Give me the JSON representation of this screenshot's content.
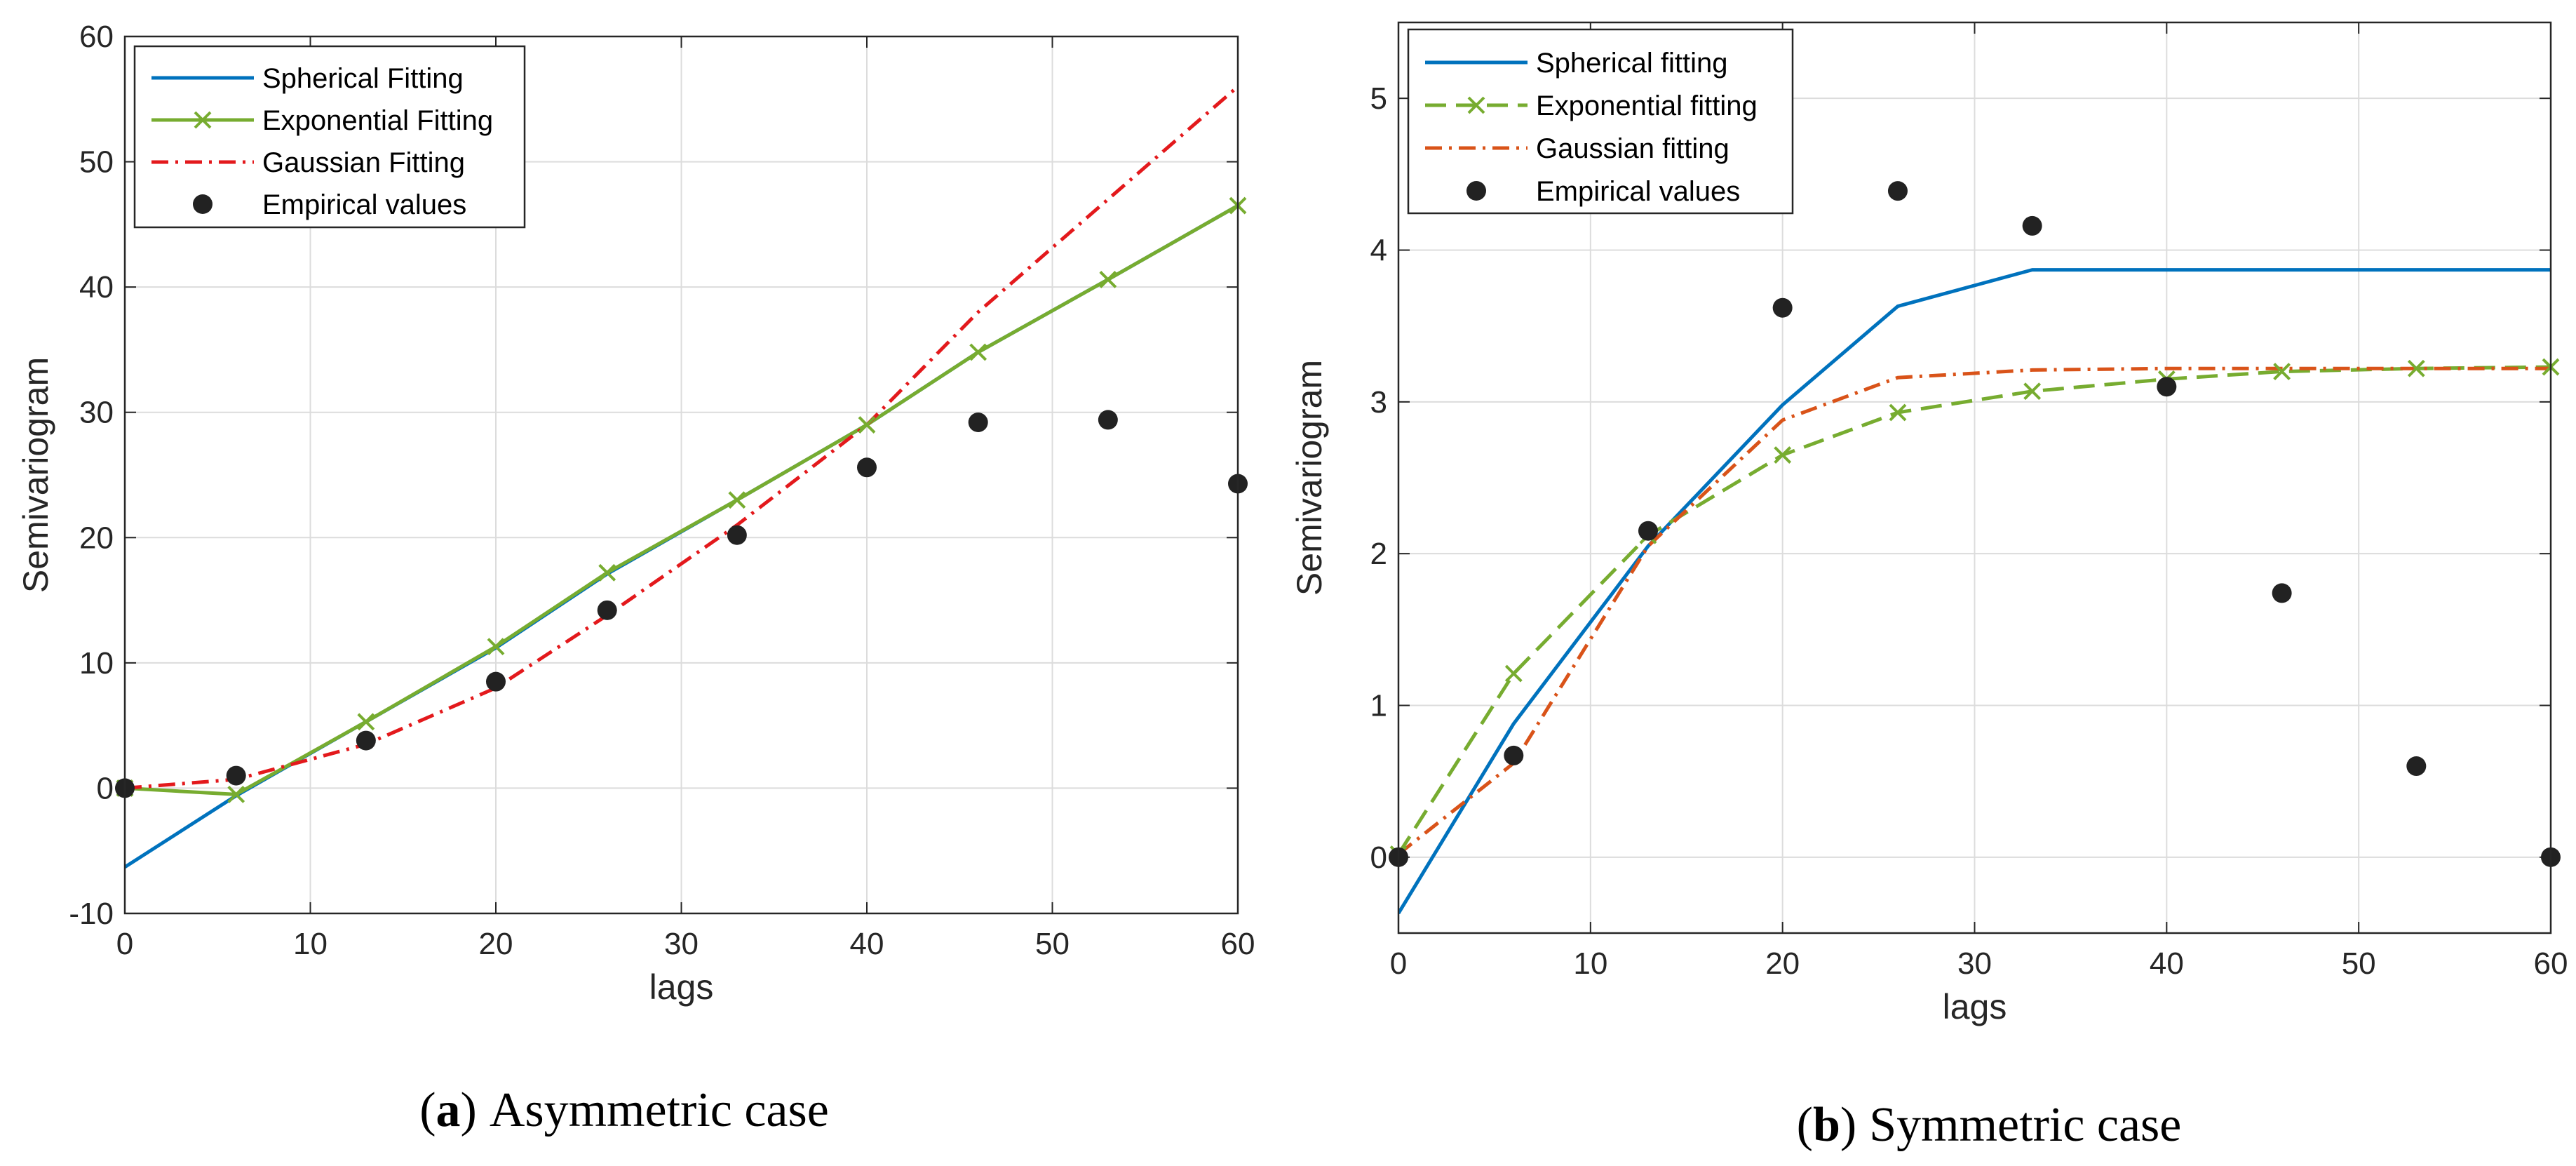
{
  "chart_data": [
    {
      "type": "line",
      "caption_letter": "a",
      "caption_text": "Asymmetric case",
      "caption_open": "(",
      "caption_close": ")",
      "xlabel": "lags",
      "ylabel": "Semivariogram",
      "xlim": [
        0,
        60
      ],
      "ylim": [
        -10,
        60
      ],
      "xticks": [
        0,
        10,
        20,
        30,
        40,
        50,
        60
      ],
      "yticks": [
        -10,
        0,
        10,
        20,
        30,
        40,
        50,
        60
      ],
      "grid": true,
      "legend_position": "top-left",
      "series": [
        {
          "name": "Spherical Fitting",
          "style": "solid",
          "marker": "none",
          "color": "#0072BD",
          "x": [
            0,
            6,
            13,
            20,
            26,
            33,
            40,
            46,
            53,
            60
          ],
          "y": [
            -6.3,
            -0.6,
            5.3,
            11.2,
            17.1,
            23.0,
            29.0,
            34.8,
            40.6,
            46.5
          ]
        },
        {
          "name": "Exponential Fitting",
          "style": "solid",
          "marker": "x",
          "color": "#77AC30",
          "x": [
            0,
            6,
            13,
            20,
            26,
            33,
            40,
            46,
            53,
            60
          ],
          "y": [
            0,
            -0.5,
            5.3,
            11.3,
            17.2,
            23.0,
            29.0,
            34.8,
            40.6,
            46.5
          ]
        },
        {
          "name": "Gaussian Fitting",
          "style": "dashdot",
          "marker": "none",
          "color": "#E3191C",
          "x": [
            0,
            6,
            13,
            20,
            26,
            33,
            40,
            46,
            53,
            60
          ],
          "y": [
            0,
            0.7,
            3.5,
            8.0,
            13.8,
            21.0,
            29.0,
            38.0,
            47.0,
            56.0
          ]
        },
        {
          "name": "Empirical values",
          "style": "none",
          "marker": "dot",
          "color": "#222222",
          "x": [
            0,
            6,
            13,
            20,
            26,
            33,
            40,
            46,
            53,
            60
          ],
          "y": [
            0,
            1.0,
            3.8,
            8.5,
            14.2,
            20.2,
            25.6,
            29.2,
            29.4,
            24.3
          ]
        }
      ]
    },
    {
      "type": "line",
      "caption_letter": "b",
      "caption_text": "Symmetric case",
      "caption_open": "(",
      "caption_close": ")",
      "xlabel": "lags",
      "ylabel": "Semivariogram",
      "xlim": [
        0,
        60
      ],
      "ylim": [
        -0.5,
        5.5
      ],
      "xticks": [
        0,
        10,
        20,
        30,
        40,
        50,
        60
      ],
      "yticks": [
        0,
        1,
        2,
        3,
        4,
        5
      ],
      "grid": true,
      "legend_position": "top-left",
      "series": [
        {
          "name": "Spherical fitting",
          "style": "solid",
          "marker": "none",
          "color": "#0072BD",
          "x": [
            0,
            6,
            13,
            20,
            26,
            33,
            40,
            46,
            53,
            60
          ],
          "y": [
            -0.37,
            0.88,
            2.05,
            2.98,
            3.63,
            3.87,
            3.87,
            3.87,
            3.87,
            3.87
          ]
        },
        {
          "name": "Exponential fitting",
          "style": "dashed",
          "marker": "x",
          "color": "#77AC30",
          "x": [
            0,
            6,
            13,
            20,
            26,
            33,
            40,
            46,
            53,
            60
          ],
          "y": [
            0.02,
            1.21,
            2.12,
            2.65,
            2.93,
            3.07,
            3.15,
            3.2,
            3.22,
            3.23
          ]
        },
        {
          "name": "Gaussian fitting",
          "style": "dashdot",
          "marker": "none",
          "color": "#D95319",
          "x": [
            0,
            6,
            13,
            20,
            26,
            33,
            40,
            46,
            53,
            60
          ],
          "y": [
            0.02,
            0.62,
            2.05,
            2.88,
            3.16,
            3.21,
            3.22,
            3.22,
            3.22,
            3.22
          ]
        },
        {
          "name": "Empirical values",
          "style": "none",
          "marker": "dot",
          "color": "#222222",
          "x": [
            0,
            6,
            13,
            20,
            26,
            33,
            40,
            46,
            53,
            60
          ],
          "y": [
            0,
            0.67,
            2.15,
            3.62,
            4.39,
            4.16,
            3.1,
            1.74,
            0.6,
            0
          ]
        }
      ]
    }
  ]
}
